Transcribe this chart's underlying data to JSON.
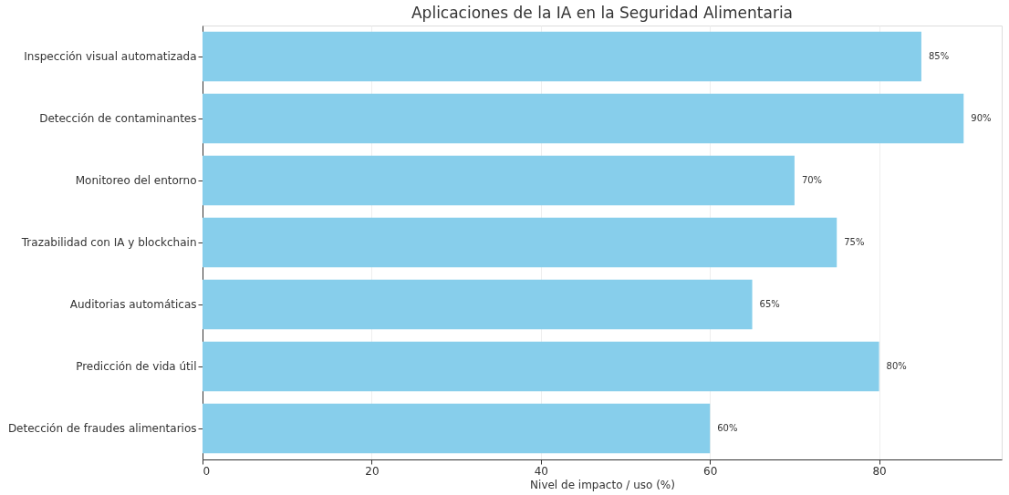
{
  "chart_data": {
    "type": "bar",
    "orientation": "horizontal",
    "title": "Aplicaciones de la IA en la Seguridad Alimentaria",
    "xlabel": "Nivel de impacto / uso (%)",
    "categories": [
      "Inspección visual automatizada",
      "Detección de contaminantes",
      "Monitoreo del entorno",
      "Trazabilidad con IA y blockchain",
      "Auditorias automáticas",
      "Predicción de vida útil",
      "Detección de fraudes alimentarios"
    ],
    "values": [
      85,
      90,
      70,
      75,
      65,
      80,
      60
    ],
    "value_labels": [
      "85%",
      "90%",
      "70%",
      "75%",
      "65%",
      "80%",
      "60%"
    ],
    "color": "#87ceeb",
    "xlim": [
      0,
      94.5
    ],
    "xticks": [
      0,
      20,
      40,
      60,
      80
    ],
    "grid": "x"
  }
}
